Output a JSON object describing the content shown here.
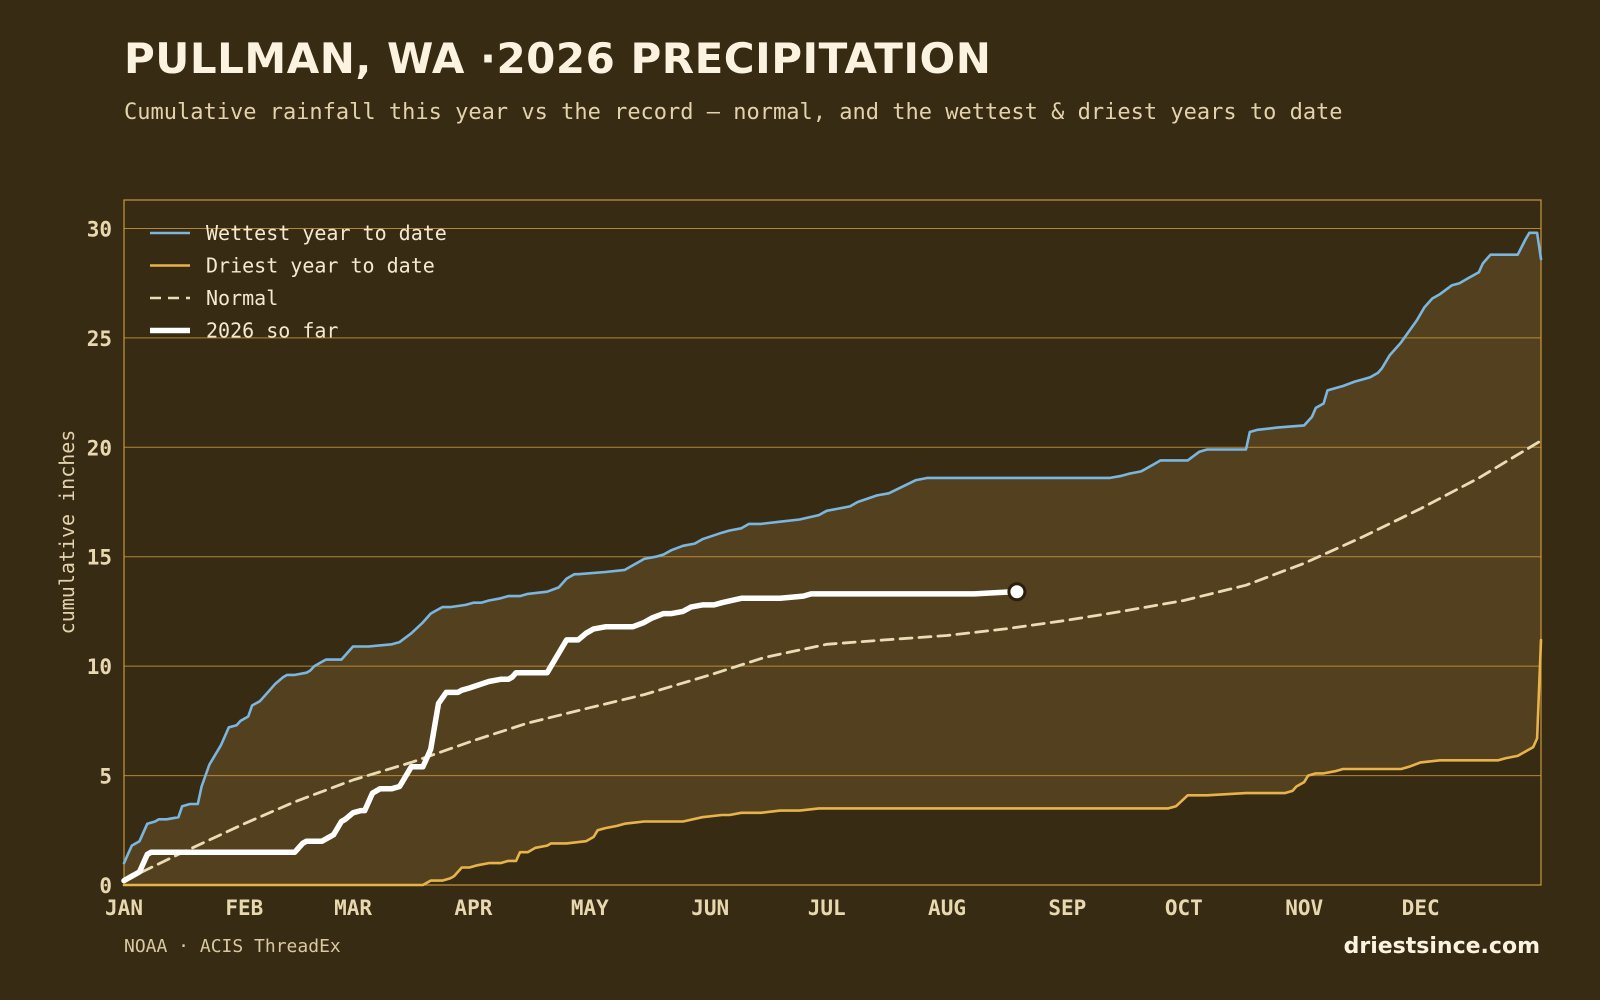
{
  "header": {
    "title": "PULLMAN, WA ·2026 PRECIPITATION",
    "subtitle": "Cumulative rainfall this year vs the record — normal, and the wettest & driest years to date"
  },
  "footer": {
    "source": "NOAA · ACIS ThreadEx",
    "brand": "driestsince.com"
  },
  "colors": {
    "background": "#382b13",
    "band_fill": "#53401f",
    "grid": "#c9973d",
    "wettest": "#7ab6e0",
    "driest": "#e8b44a",
    "normal": "#eadcb4",
    "current": "#ffffff"
  },
  "chart_data": {
    "type": "line",
    "title": "PULLMAN, WA ·2026 PRECIPITATION",
    "xlabel": "",
    "ylabel": "cumulative inches",
    "x_unit": "day of year",
    "xlim": [
      1,
      366
    ],
    "ylim": [
      0,
      31.3
    ],
    "yticks": [
      0,
      5,
      10,
      15,
      20,
      25,
      30
    ],
    "month_labels": [
      "JAN",
      "FEB",
      "MAR",
      "APR",
      "MAY",
      "JUN",
      "JUL",
      "AUG",
      "SEP",
      "OCT",
      "NOV",
      "DEC"
    ],
    "month_days": [
      1,
      32,
      60,
      91,
      121,
      152,
      182,
      213,
      244,
      274,
      305,
      335
    ],
    "grid": "horizontal",
    "legend_position": "top-left",
    "shaded_band": "between driest and wettest",
    "series": [
      {
        "name": "Wettest year to date",
        "style": "solid",
        "x": [
          1,
          3,
          5,
          7,
          9,
          10,
          12,
          15,
          16,
          18,
          20,
          21,
          23,
          26,
          28,
          30,
          31,
          33,
          34,
          36,
          37,
          40,
          42,
          43,
          45,
          48,
          49,
          50,
          52,
          53,
          55,
          57,
          60,
          62,
          64,
          70,
          72,
          75,
          78,
          80,
          81,
          83,
          85,
          89,
          91,
          93,
          95,
          98,
          100,
          103,
          105,
          110,
          113,
          115,
          117,
          118,
          125,
          130,
          135,
          138,
          140,
          142,
          145,
          148,
          150,
          155,
          157,
          160,
          162,
          165,
          170,
          175,
          180,
          182,
          185,
          188,
          190,
          195,
          198,
          205,
          208,
          210,
          220,
          230,
          240,
          255,
          258,
          260,
          263,
          267,
          268,
          275,
          278,
          280,
          290,
          291,
          293,
          298,
          305,
          307,
          308,
          310,
          311,
          315,
          318,
          320,
          322,
          324,
          325,
          327,
          330,
          332,
          334,
          336,
          338,
          340,
          343,
          345,
          347,
          350,
          351,
          353,
          355,
          360,
          362,
          363,
          365,
          366
        ],
        "values": [
          1.0,
          1.8,
          2.0,
          2.8,
          2.9,
          3.0,
          3.0,
          3.1,
          3.6,
          3.7,
          3.7,
          4.5,
          5.5,
          6.4,
          7.2,
          7.3,
          7.5,
          7.7,
          8.2,
          8.4,
          8.6,
          9.2,
          9.5,
          9.6,
          9.6,
          9.7,
          9.8,
          10.0,
          10.2,
          10.3,
          10.3,
          10.3,
          10.9,
          10.9,
          10.9,
          11.0,
          11.1,
          11.5,
          12.0,
          12.4,
          12.5,
          12.7,
          12.7,
          12.8,
          12.9,
          12.9,
          13.0,
          13.1,
          13.2,
          13.2,
          13.3,
          13.4,
          13.6,
          14.0,
          14.2,
          14.2,
          14.3,
          14.4,
          14.9,
          15.0,
          15.1,
          15.3,
          15.5,
          15.6,
          15.8,
          16.1,
          16.2,
          16.3,
          16.5,
          16.5,
          16.6,
          16.7,
          16.9,
          17.1,
          17.2,
          17.3,
          17.5,
          17.8,
          17.9,
          18.5,
          18.6,
          18.6,
          18.6,
          18.6,
          18.6,
          18.6,
          18.7,
          18.8,
          18.9,
          19.3,
          19.4,
          19.4,
          19.8,
          19.9,
          19.9,
          20.7,
          20.8,
          20.9,
          21.0,
          21.4,
          21.8,
          22.0,
          22.6,
          22.8,
          23.0,
          23.1,
          23.2,
          23.4,
          23.6,
          24.2,
          24.8,
          25.3,
          25.8,
          26.4,
          26.8,
          27.0,
          27.4,
          27.5,
          27.7,
          28.0,
          28.4,
          28.8,
          28.8,
          28.8,
          29.5,
          29.8,
          29.8,
          28.6
        ]
      },
      {
        "name": "Driest year to date",
        "style": "solid",
        "x": [
          1,
          60,
          78,
          80,
          83,
          85,
          86,
          88,
          90,
          92,
          95,
          98,
          100,
          102,
          103,
          105,
          107,
          110,
          111,
          113,
          115,
          120,
          122,
          123,
          125,
          128,
          130,
          135,
          140,
          145,
          150,
          155,
          157,
          160,
          165,
          170,
          175,
          180,
          182,
          190,
          200,
          210,
          220,
          230,
          240,
          250,
          258,
          270,
          272,
          275,
          280,
          290,
          300,
          302,
          303,
          305,
          306,
          308,
          310,
          313,
          315,
          325,
          330,
          332,
          335,
          340,
          350,
          355,
          357,
          360,
          362,
          364,
          365,
          366
        ],
        "values": [
          0,
          0,
          0,
          0.2,
          0.2,
          0.3,
          0.4,
          0.8,
          0.8,
          0.9,
          1.0,
          1.0,
          1.1,
          1.1,
          1.5,
          1.5,
          1.7,
          1.8,
          1.9,
          1.9,
          1.9,
          2.0,
          2.2,
          2.5,
          2.6,
          2.7,
          2.8,
          2.9,
          2.9,
          2.9,
          3.1,
          3.2,
          3.2,
          3.3,
          3.3,
          3.4,
          3.4,
          3.5,
          3.5,
          3.5,
          3.5,
          3.5,
          3.5,
          3.5,
          3.5,
          3.5,
          3.5,
          3.5,
          3.6,
          4.1,
          4.1,
          4.2,
          4.2,
          4.3,
          4.5,
          4.7,
          5.0,
          5.1,
          5.1,
          5.2,
          5.3,
          5.3,
          5.3,
          5.4,
          5.6,
          5.7,
          5.7,
          5.7,
          5.8,
          5.9,
          6.1,
          6.3,
          6.7,
          11.2
        ]
      },
      {
        "name": "Normal",
        "style": "dashed",
        "x": [
          1,
          15,
          32,
          45,
          60,
          75,
          91,
          105,
          121,
          135,
          152,
          166,
          182,
          197,
          213,
          228,
          244,
          258,
          274,
          290,
          305,
          320,
          335,
          350,
          366
        ],
        "values": [
          0.2,
          1.4,
          2.8,
          3.8,
          4.8,
          5.6,
          6.6,
          7.4,
          8.1,
          8.7,
          9.6,
          10.4,
          11.0,
          11.2,
          11.4,
          11.7,
          12.1,
          12.5,
          13.0,
          13.7,
          14.7,
          15.9,
          17.2,
          18.6,
          20.3
        ]
      },
      {
        "name": "2026 so far",
        "style": "thick",
        "x": [
          1,
          2,
          3,
          4,
          5,
          6,
          7,
          8,
          10,
          15,
          20,
          30,
          35,
          40,
          45,
          46,
          47,
          48,
          50,
          52,
          55,
          56,
          57,
          58,
          60,
          62,
          63,
          65,
          67,
          70,
          72,
          75,
          76,
          77,
          78,
          79,
          80,
          82,
          84,
          85,
          87,
          88,
          90,
          95,
          98,
          100,
          101,
          102,
          103,
          105,
          108,
          110,
          112,
          115,
          116,
          118,
          120,
          122,
          125,
          128,
          130,
          132,
          135,
          137,
          140,
          142,
          145,
          147,
          150,
          152,
          153,
          155,
          160,
          170,
          176,
          178,
          180,
          182,
          185,
          190,
          195,
          200,
          210,
          220,
          230,
          231
        ],
        "values": [
          0.2,
          0.3,
          0.4,
          0.5,
          0.6,
          1.0,
          1.4,
          1.5,
          1.5,
          1.5,
          1.5,
          1.5,
          1.5,
          1.5,
          1.5,
          1.7,
          1.9,
          2.0,
          2.0,
          2.0,
          2.3,
          2.6,
          2.9,
          3.0,
          3.3,
          3.4,
          3.4,
          4.2,
          4.4,
          4.4,
          4.5,
          5.4,
          5.4,
          5.4,
          5.4,
          5.8,
          6.2,
          8.3,
          8.8,
          8.8,
          8.8,
          8.9,
          9.0,
          9.3,
          9.4,
          9.4,
          9.5,
          9.7,
          9.7,
          9.7,
          9.7,
          9.7,
          10.3,
          11.2,
          11.2,
          11.2,
          11.5,
          11.7,
          11.8,
          11.8,
          11.8,
          11.8,
          12.0,
          12.2,
          12.4,
          12.4,
          12.5,
          12.7,
          12.8,
          12.8,
          12.8,
          12.9,
          13.1,
          13.1,
          13.2,
          13.3,
          13.3,
          13.3,
          13.3,
          13.3,
          13.3,
          13.3,
          13.3,
          13.3,
          13.4,
          13.4
        ]
      }
    ]
  }
}
